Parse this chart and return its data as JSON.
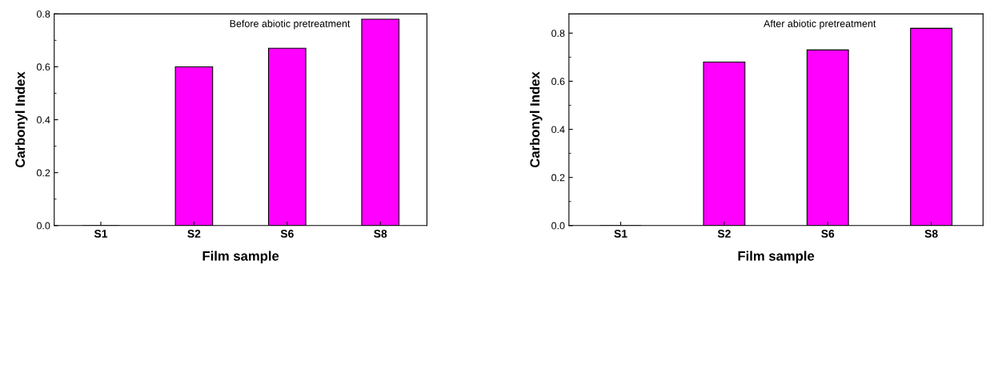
{
  "chart_data": [
    {
      "type": "bar",
      "categories": [
        "S1",
        "S2",
        "S6",
        "S8"
      ],
      "values": [
        0,
        0.6,
        0.67,
        0.78
      ],
      "color": "#ff00ff",
      "xlabel": "Film sample",
      "ylabel": "Carbonyl Index",
      "annotations": [
        "Before abiotic pretreatment"
      ],
      "ylim": [
        0,
        0.8
      ],
      "yticks": [
        {
          "value": 0,
          "label": "0.0"
        },
        {
          "value": 0.2,
          "label": "0.2"
        },
        {
          "value": 0.4,
          "label": "0.4"
        },
        {
          "value": 0.6,
          "label": "0.6"
        },
        {
          "value": 0.8,
          "label": "0.8"
        }
      ],
      "grid": false,
      "legend": false
    },
    {
      "type": "bar",
      "categories": [
        "S1",
        "S2",
        "S6",
        "S8"
      ],
      "values": [
        0,
        0.68,
        0.73,
        0.82
      ],
      "color": "#ff00ff",
      "xlabel": "Film sample",
      "ylabel": "Carbonyl Index",
      "annotations": [
        "After abiotic pretreatment"
      ],
      "ylim": [
        0,
        0.88
      ],
      "yticks": [
        {
          "value": 0,
          "label": "0.0"
        },
        {
          "value": 0.2,
          "label": "0.2"
        },
        {
          "value": 0.4,
          "label": "0.4"
        },
        {
          "value": 0.6,
          "label": "0.6"
        },
        {
          "value": 0.8,
          "label": "0.8"
        }
      ],
      "grid": false,
      "legend": false
    }
  ]
}
